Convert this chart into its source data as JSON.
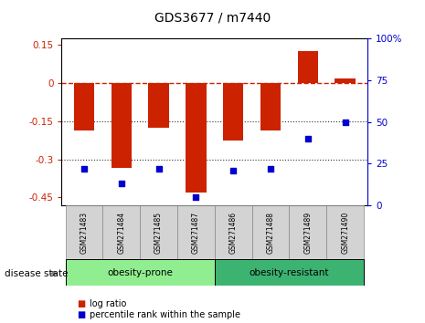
{
  "title": "GDS3677 / m7440",
  "samples": [
    "GSM271483",
    "GSM271484",
    "GSM271485",
    "GSM271487",
    "GSM271486",
    "GSM271488",
    "GSM271489",
    "GSM271490"
  ],
  "log_ratio": [
    -0.185,
    -0.335,
    -0.175,
    -0.43,
    -0.225,
    -0.185,
    0.125,
    0.02
  ],
  "percentile_rank": [
    22,
    13,
    22,
    5,
    21,
    22,
    40,
    50
  ],
  "groups": [
    {
      "label": "obesity-prone",
      "indices": [
        0,
        1,
        2,
        3
      ],
      "color": "#90EE90"
    },
    {
      "label": "obesity-resistant",
      "indices": [
        4,
        5,
        6,
        7
      ],
      "color": "#3CB371"
    }
  ],
  "ylim_left": [
    -0.48,
    0.175
  ],
  "ylim_right": [
    0,
    100
  ],
  "yticks_left": [
    0.15,
    0,
    -0.15,
    -0.3,
    -0.45
  ],
  "yticks_right": [
    100,
    75,
    50,
    25,
    0
  ],
  "ytick_labels_right": [
    "100%",
    "75",
    "50",
    "25",
    "0"
  ],
  "bar_color": "#CC2200",
  "dot_color": "#0000CC",
  "hline_color": "#CC2200",
  "dotted_line_color": "#333333",
  "bar_width": 0.55,
  "legend_items": [
    "log ratio",
    "percentile rank within the sample"
  ]
}
